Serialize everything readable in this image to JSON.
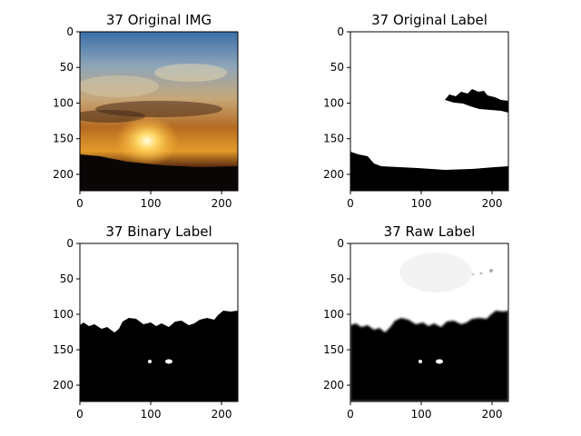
{
  "chart_data": [
    {
      "type": "image",
      "title": "37 Original IMG",
      "content": "photo",
      "xlim": [
        0,
        223
      ],
      "ylim": [
        223,
        0
      ],
      "xticks": [
        0,
        100,
        200
      ],
      "yticks": [
        0,
        50,
        100,
        150,
        200
      ],
      "xticklabels": [
        "0",
        "100",
        "200"
      ],
      "yticklabels": [
        "0",
        "50",
        "100",
        "150",
        "200"
      ]
    },
    {
      "type": "image",
      "title": "37 Original Label",
      "content": "mask",
      "xlim": [
        0,
        223
      ],
      "ylim": [
        223,
        0
      ],
      "xticks": [
        0,
        100,
        200
      ],
      "yticks": [
        0,
        50,
        100,
        150,
        200
      ],
      "xticklabels": [
        "0",
        "100",
        "200"
      ],
      "yticklabels": [
        "0",
        "50",
        "100",
        "150",
        "200"
      ]
    },
    {
      "type": "image",
      "title": "37 Binary Label",
      "content": "mask",
      "xlim": [
        0,
        223
      ],
      "ylim": [
        223,
        0
      ],
      "xticks": [
        0,
        100,
        200
      ],
      "yticks": [
        0,
        50,
        100,
        150,
        200
      ],
      "xticklabels": [
        "0",
        "100",
        "200"
      ],
      "yticklabels": [
        "0",
        "50",
        "100",
        "150",
        "200"
      ]
    },
    {
      "type": "image",
      "title": "37 Raw Label",
      "content": "mask",
      "xlim": [
        0,
        223
      ],
      "ylim": [
        223,
        0
      ],
      "xticks": [
        0,
        100,
        200
      ],
      "yticks": [
        0,
        50,
        100,
        150,
        200
      ],
      "xticklabels": [
        "0",
        "100",
        "200"
      ],
      "yticklabels": [
        "0",
        "50",
        "100",
        "150",
        "200"
      ]
    }
  ]
}
